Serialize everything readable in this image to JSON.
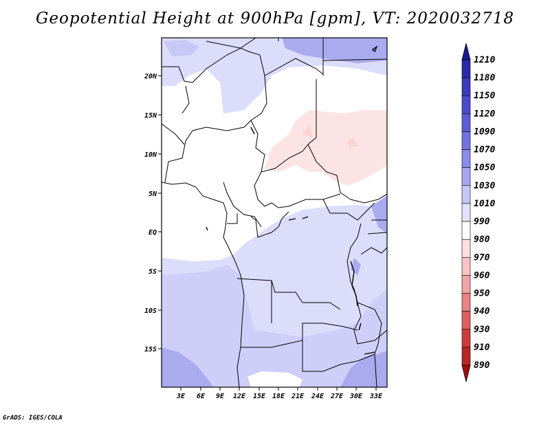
{
  "title": "Geopotential Height at 900hPa [gpm], VT: 2020032718",
  "credit": "GrADS: IGES/COLA",
  "map": {
    "lat_labels": [
      "20N",
      "15N",
      "10N",
      "5N",
      "EQ",
      "5S",
      "10S",
      "15S"
    ],
    "lon_labels": [
      "3E",
      "6E",
      "9E",
      "12E",
      "15E",
      "18E",
      "21E",
      "24E",
      "27E",
      "30E",
      "33E"
    ]
  },
  "colorbar": {
    "labels": [
      "1210",
      "1180",
      "1150",
      "1120",
      "1090",
      "1070",
      "1050",
      "1030",
      "1010",
      "990",
      "980",
      "970",
      "960",
      "950",
      "940",
      "930",
      "910",
      "890"
    ],
    "colors": [
      "#1c1c8c",
      "#2a2aa6",
      "#3a3abc",
      "#4b4bcc",
      "#5d5dd8",
      "#7373e0",
      "#8c8ce8",
      "#a8a8ef",
      "#c6c6f6",
      "#e2e2fb",
      "#ffffff",
      "#fde0e0",
      "#f8c4c4",
      "#f0a6a6",
      "#e88484",
      "#dc6060",
      "#cc3c3c",
      "#b82626",
      "#a01010"
    ]
  },
  "shading_colors": {
    "light_blue": "#dcdcfb",
    "medium_blue": "#c8c8f6",
    "deep_blue": "#aaaaef",
    "light_pink": "#fde4e4"
  }
}
